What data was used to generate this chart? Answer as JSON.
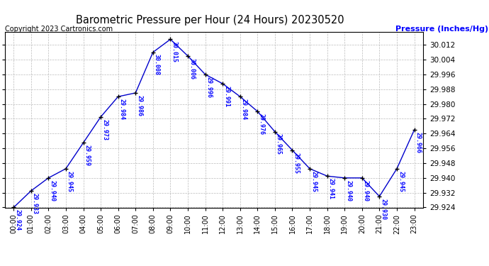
{
  "title": "Barometric Pressure per Hour (24 Hours) 20230520",
  "ylabel": "Pressure (Inches/Hg)",
  "copyright": "Copyright 2023 Cartronics.com",
  "hours": [
    "00:00",
    "01:00",
    "02:00",
    "03:00",
    "04:00",
    "05:00",
    "06:00",
    "07:00",
    "08:00",
    "09:00",
    "10:00",
    "11:00",
    "12:00",
    "13:00",
    "14:00",
    "15:00",
    "16:00",
    "17:00",
    "18:00",
    "19:00",
    "20:00",
    "21:00",
    "22:00",
    "23:00"
  ],
  "values": [
    29.924,
    29.933,
    29.94,
    29.945,
    29.959,
    29.973,
    29.984,
    29.986,
    30.008,
    30.015,
    30.006,
    29.996,
    29.991,
    29.984,
    29.976,
    29.965,
    29.955,
    29.945,
    29.941,
    29.94,
    29.94,
    29.93,
    29.945,
    29.966
  ],
  "line_color": "#0000cc",
  "marker_color": "#000000",
  "bg_color": "#ffffff",
  "grid_color": "#bbbbbb",
  "title_color": "#000000",
  "ylabel_color": "#0000ff",
  "copyright_color": "#000000",
  "label_color": "#0000ff",
  "ylim_min": 29.924,
  "ylim_max": 30.019,
  "ytick_step": 0.008
}
